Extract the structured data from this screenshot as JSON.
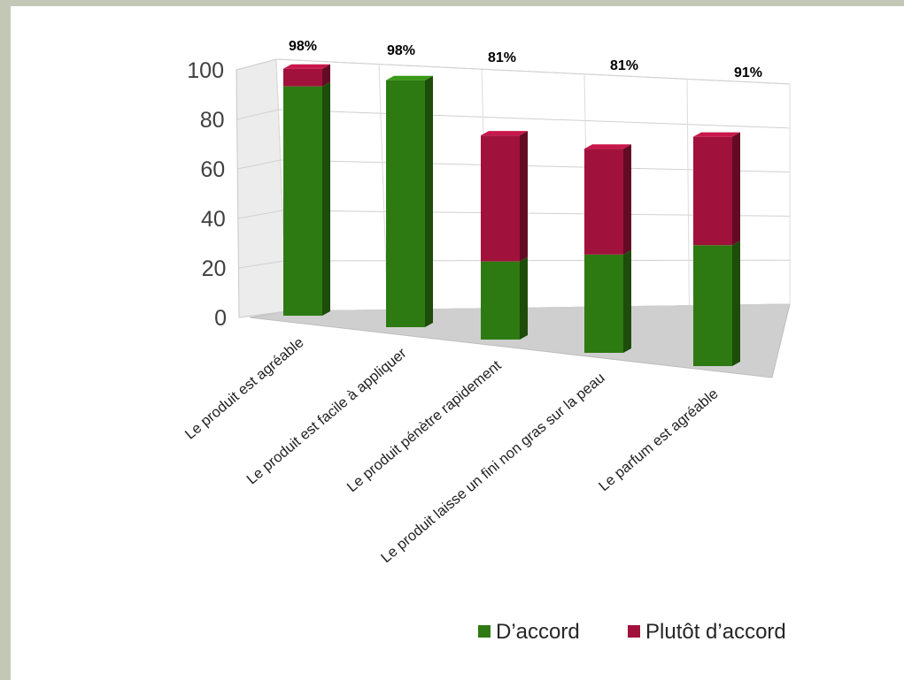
{
  "chart_data": {
    "type": "bar",
    "stacked": true,
    "three_d": true,
    "ylim": [
      0,
      100
    ],
    "yticks": [
      0,
      20,
      40,
      60,
      80,
      100
    ],
    "grid": true,
    "legend_position": "bottom-right",
    "categories": [
      "Le produit est agréable",
      "Le produit est facile à appliquer",
      "Le produit pénètre rapidement",
      "Le produit laisse un fini non gras sur la peau",
      "Le parfum est agréable"
    ],
    "series": [
      {
        "name": "D’accord",
        "color": "#2e7a12",
        "values": [
          91,
          98,
          31,
          39,
          48
        ]
      },
      {
        "name": "Plutôt d’accord",
        "color": "#a0123c",
        "values": [
          7,
          0,
          50,
          42,
          43
        ]
      }
    ],
    "totals_labels": [
      "98%",
      "98%",
      "81%",
      "81%",
      "91%"
    ]
  }
}
